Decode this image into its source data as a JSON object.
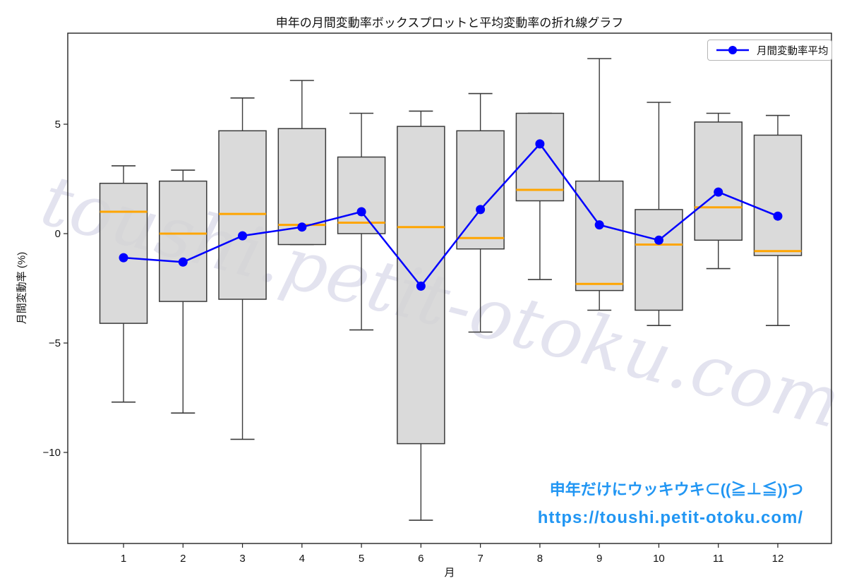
{
  "title": "申年の月間変動率ボックスプロットと平均変動率の折れ線グラフ",
  "legend": {
    "label": "月間変動率平均"
  },
  "watermark": "toushi.petit-otoku.com",
  "annotations": {
    "line1": "申年だけにウッキウキ⊂((≧⊥≦))つ",
    "line2": "https://toushi.petit-otoku.com/"
  },
  "colors": {
    "box_fill": "rgba(211,211,211,0.85)",
    "box_edge": "#3b3b3b",
    "median": "#ffa500",
    "mean_line": "#0000ff",
    "annotation_blue": "#2196f3",
    "watermark": "#e3e3ef",
    "axis": "#222222"
  },
  "chart_data": {
    "type": "boxplot+line",
    "title": "申年の月間変動率ボックスプロットと平均変動率の折れ線グラフ",
    "xlabel": "月",
    "ylabel": "月間変動率 (%)",
    "categories": [
      "1",
      "2",
      "3",
      "4",
      "5",
      "6",
      "7",
      "8",
      "9",
      "10",
      "11",
      "12"
    ],
    "yticks": [
      5,
      0,
      -5,
      -10
    ],
    "ytick_labels": [
      "5",
      "0",
      "−5",
      "−10"
    ],
    "ylim": [
      -14.2,
      9.2
    ],
    "grid": false,
    "legend_position": "upper right",
    "boxes": [
      {
        "month": 1,
        "whisker_low": -7.7,
        "q1": -4.1,
        "median": 1.0,
        "q3": 2.3,
        "whisker_high": 3.1
      },
      {
        "month": 2,
        "whisker_low": -8.2,
        "q1": -3.1,
        "median": 0.0,
        "q3": 2.4,
        "whisker_high": 2.9
      },
      {
        "month": 3,
        "whisker_low": -9.4,
        "q1": -3.0,
        "median": 0.9,
        "q3": 4.7,
        "whisker_high": 6.2
      },
      {
        "month": 4,
        "whisker_low": -0.5,
        "q1": -0.5,
        "median": 0.4,
        "q3": 4.8,
        "whisker_high": 7.0
      },
      {
        "month": 5,
        "whisker_low": -4.4,
        "q1": 0.0,
        "median": 0.5,
        "q3": 3.5,
        "whisker_high": 5.5
      },
      {
        "month": 6,
        "whisker_low": -13.1,
        "q1": -9.6,
        "median": 0.3,
        "q3": 4.9,
        "whisker_high": 5.6
      },
      {
        "month": 7,
        "whisker_low": -4.5,
        "q1": -0.7,
        "median": -0.2,
        "q3": 4.7,
        "whisker_high": 6.4
      },
      {
        "month": 8,
        "whisker_low": -2.1,
        "q1": 1.5,
        "median": 2.0,
        "q3": 5.5,
        "whisker_high": 5.5
      },
      {
        "month": 9,
        "whisker_low": -3.5,
        "q1": -2.6,
        "median": -2.3,
        "q3": 2.4,
        "whisker_high": 8.0
      },
      {
        "month": 10,
        "whisker_low": -4.2,
        "q1": -3.5,
        "median": -0.5,
        "q3": 1.1,
        "whisker_high": 6.0
      },
      {
        "month": 11,
        "whisker_low": -1.6,
        "q1": -0.3,
        "median": 1.2,
        "q3": 5.1,
        "whisker_high": 5.5
      },
      {
        "month": 12,
        "whisker_low": -4.2,
        "q1": -1.0,
        "median": -0.8,
        "q3": 4.5,
        "whisker_high": 5.4
      }
    ],
    "series": [
      {
        "name": "月間変動率平均",
        "type": "line",
        "values": [
          -1.1,
          -1.3,
          -0.1,
          0.3,
          1.0,
          -2.4,
          1.1,
          4.1,
          0.4,
          -0.3,
          1.9,
          0.8
        ]
      }
    ]
  }
}
